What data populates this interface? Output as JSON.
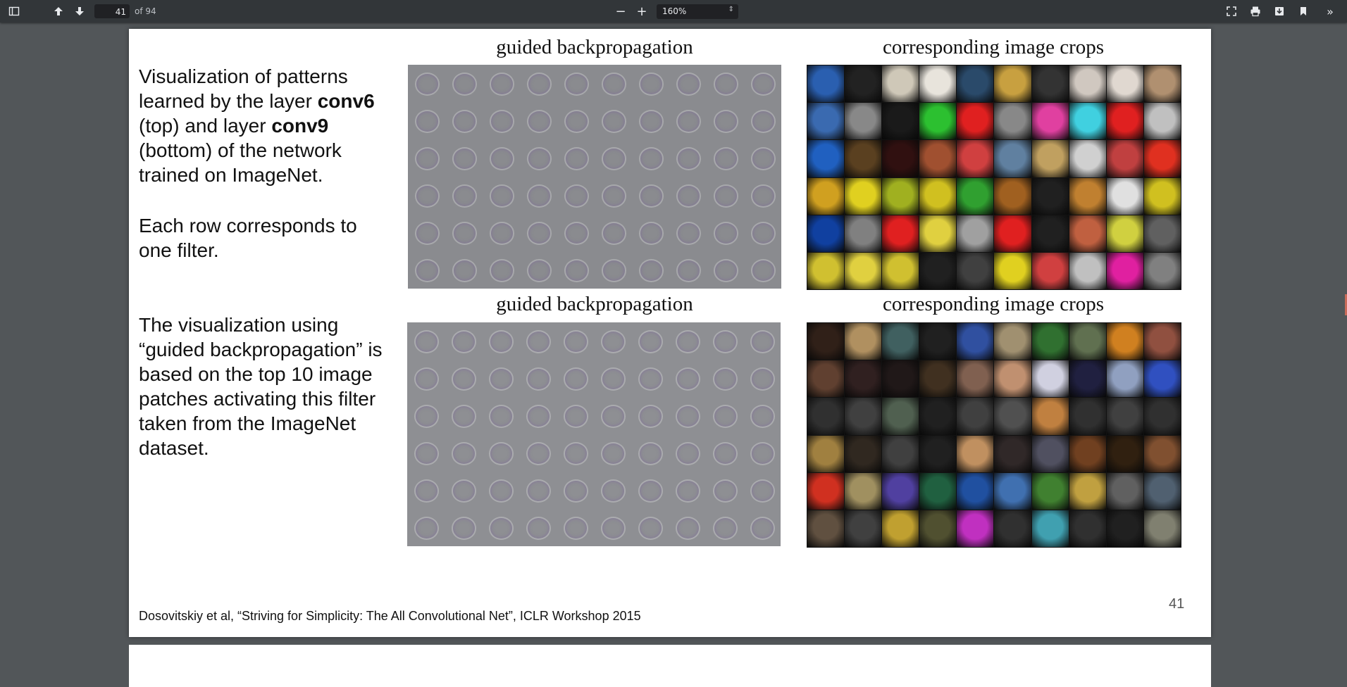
{
  "toolbar": {
    "page_current": "41",
    "page_total": "of 94",
    "zoom": "160%",
    "zoom_out": "−",
    "zoom_in": "+",
    "icons": {
      "sidebar": "sidebar-toggle-icon",
      "prev": "arrow-up-icon",
      "next": "arrow-down-icon",
      "fullscreen": "presentation-icon",
      "print": "print-icon",
      "download": "download-icon",
      "bookmark": "bookmark-icon",
      "more": "more-tools-icon"
    }
  },
  "slide": {
    "text_block_1": {
      "line1": "Visualization of patterns",
      "line2_pre": "learned by the layer ",
      "line2_bold": "conv6",
      "line3_pre": "(top) and layer ",
      "line3_bold": "conv9",
      "line4": "(bottom) of the network",
      "line5": "trained on ImageNet."
    },
    "text_block_2": {
      "line1": "Each row corresponds to",
      "line2": "one filter."
    },
    "text_block_3": {
      "line1": "The visualization using",
      "line2": "“guided backpropagation” is",
      "line3": "based on the top 10 image",
      "line4": "patches activating this filter",
      "line5": "taken from the ImageNet",
      "line6": "dataset."
    },
    "top_left_caption": "guided backpropagation",
    "top_right_caption": "corresponding image crops",
    "bottom_left_caption": "guided backpropagation",
    "bottom_right_caption": "corresponding image crops",
    "citation": "Dosovitskiy et al, “Striving for Simplicity: The All Convolutional Net”, ICLR Workshop 2015",
    "slide_number": "41"
  },
  "crop_colors_top": [
    [
      "#2a5fb0",
      "#222",
      "#cfc8b8",
      "#e8e4dc",
      "#2a4a6a",
      "#c8a040",
      "#333",
      "#d0c8c0",
      "#e0d8d0",
      "#b09070"
    ],
    [
      "#3a6ab0",
      "#888",
      "#1a1a1a",
      "#2cc030",
      "#e02020",
      "#888",
      "#e040a0",
      "#40d0e0",
      "#e02020",
      "#c0c0c0"
    ],
    [
      "#2060c0",
      "#5a4020",
      "#301010",
      "#a05030",
      "#d04040",
      "#6080a0",
      "#c0a060",
      "#d0d0d0",
      "#c04040",
      "#e03020"
    ],
    [
      "#d0a020",
      "#e0d020",
      "#a0b020",
      "#d0c020",
      "#30a030",
      "#a06020",
      "#202020",
      "#c08030",
      "#e0e0e0",
      "#d0c020"
    ],
    [
      "#1040a0",
      "#808080",
      "#e02020",
      "#e0d040",
      "#a0a0a0",
      "#e02020",
      "#202020",
      "#c06040",
      "#d0d040",
      "#606060"
    ],
    [
      "#d0c030",
      "#e0d040",
      "#d0c030",
      "#202020",
      "#404040",
      "#e0d020",
      "#d04040",
      "#c0c0c0",
      "#e020a0",
      "#808080"
    ]
  ],
  "crop_colors_bottom": [
    [
      "#302018",
      "#b09060",
      "#406060",
      "#202020",
      "#3050a0",
      "#a09070",
      "#307030",
      "#607050",
      "#d08020",
      "#905040"
    ],
    [
      "#604030",
      "#302020",
      "#201818",
      "#403020",
      "#806050",
      "#c09070",
      "#d0d0e0",
      "#202040",
      "#90a0c0",
      "#3050c0"
    ],
    [
      "#303030",
      "#404040",
      "#506050",
      "#202020",
      "#404040",
      "#505050",
      "#c08040",
      "#303030",
      "#404040",
      "#303030"
    ],
    [
      "#a08040",
      "#302820",
      "#404040",
      "#202020",
      "#c09060",
      "#302828",
      "#505060",
      "#704020",
      "#302010",
      "#805030"
    ],
    [
      "#d03020",
      "#a09060",
      "#5040a0",
      "#206040",
      "#2050a0",
      "#4070b0",
      "#408030",
      "#c0a040",
      "#606060",
      "#506070"
    ],
    [
      "#605040",
      "#404040",
      "#c0a030",
      "#505030",
      "#c030c0",
      "#303030",
      "#40a0b0",
      "#303030",
      "#202020",
      "#808070"
    ]
  ]
}
